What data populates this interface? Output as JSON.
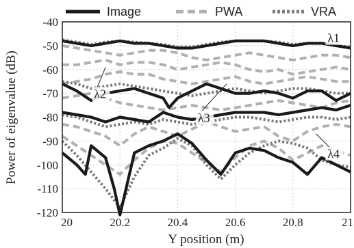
{
  "chart_data": {
    "type": "line",
    "xlabel": "Y position (m)",
    "ylabel": "Power of eigenvalue (dB)",
    "xlim": [
      20,
      21
    ],
    "ylim": [
      -120,
      -40
    ],
    "xticks": [
      "20",
      "20.2",
      "20.4",
      "20.6",
      "20.8",
      "21"
    ],
    "yticks": [
      "-40",
      "-50",
      "-60",
      "-70",
      "-80",
      "-90",
      "-100",
      "-110",
      "-120"
    ],
    "grid": true,
    "legend_position": "top",
    "legend": [
      {
        "name": "Image",
        "style": "solid",
        "color": "#1a1a1a"
      },
      {
        "name": "PWA",
        "style": "dashed",
        "color": "#b0b0b0"
      },
      {
        "name": "VRA",
        "style": "dotted",
        "color": "#7a7a7a"
      }
    ],
    "annotations": [
      {
        "text": "λ1",
        "x": 20.92,
        "y": -48.5
      },
      {
        "text": "λ2",
        "x": 20.11,
        "y": -72
      },
      {
        "text": "λ3",
        "x": 20.47,
        "y": -82
      },
      {
        "text": "λ4",
        "x": 20.92,
        "y": -97
      }
    ],
    "series": [
      {
        "name": "Image",
        "curve": "λ1",
        "style": "solid",
        "x": [
          20,
          20.05,
          20.1,
          20.15,
          20.2,
          20.25,
          20.3,
          20.35,
          20.4,
          20.45,
          20.5,
          20.55,
          20.6,
          20.65,
          20.7,
          20.75,
          20.8,
          20.85,
          20.9,
          20.95,
          21
        ],
        "y": [
          -48,
          -49,
          -50,
          -49,
          -48,
          -49,
          -49,
          -50,
          -51,
          -51,
          -50,
          -49,
          -48,
          -48,
          -48,
          -49,
          -50,
          -49,
          -49,
          -50,
          -51
        ]
      },
      {
        "name": "VRA",
        "curve": "λ1",
        "style": "dotted",
        "x": [
          20,
          20.05,
          20.1,
          20.15,
          20.2,
          20.25,
          20.3,
          20.35,
          20.4,
          20.45,
          20.5,
          20.55,
          20.6,
          20.65,
          20.7,
          20.75,
          20.8,
          20.85,
          20.9,
          20.95,
          21
        ],
        "y": [
          -47.5,
          -48.5,
          -49.5,
          -48.5,
          -48,
          -48.5,
          -49,
          -49.5,
          -50.5,
          -50.5,
          -49.5,
          -48.5,
          -48,
          -48,
          -48,
          -48.5,
          -49.5,
          -49,
          -49,
          -50,
          -50.5
        ]
      },
      {
        "name": "PWA",
        "curve": "λ1",
        "style": "dashed",
        "x": [
          20,
          20.05,
          20.1,
          20.15,
          20.2,
          20.25,
          20.3,
          20.35,
          20.4,
          20.45,
          20.5,
          20.55,
          20.6,
          20.65,
          20.7,
          20.75,
          20.8,
          20.85,
          20.9,
          20.95,
          21
        ],
        "y": [
          -50,
          -51,
          -52,
          -53,
          -54,
          -53,
          -52,
          -52,
          -53,
          -55,
          -56,
          -55,
          -54,
          -53,
          -54,
          -55,
          -56,
          -55,
          -54,
          -54,
          -55
        ]
      },
      {
        "name": "PWA",
        "curve": "λ2",
        "style": "dashed",
        "x": [
          20,
          20.05,
          20.1,
          20.15,
          20.2,
          20.25,
          20.3,
          20.35,
          20.4,
          20.45,
          20.5,
          20.55,
          20.6,
          20.65,
          20.7,
          20.75,
          20.8,
          20.85,
          20.9,
          20.95,
          21
        ],
        "y": [
          -58,
          -58,
          -57,
          -56,
          -58,
          -57,
          -57,
          -58,
          -60,
          -59,
          -58,
          -57,
          -58,
          -60,
          -61,
          -60,
          -62,
          -61,
          -60,
          -59,
          -60
        ]
      },
      {
        "name": "PWA",
        "curve": "λ2",
        "style": "dashed",
        "x": [
          20,
          20.05,
          20.1,
          20.15,
          20.2,
          20.25,
          20.3,
          20.35,
          20.4,
          20.45,
          20.5,
          20.55,
          20.6,
          20.65,
          20.7,
          20.75,
          20.8,
          20.85,
          20.9,
          20.95,
          21
        ],
        "y": [
          -66,
          -65,
          -64,
          -62,
          -61,
          -62,
          -62,
          -64,
          -65,
          -66,
          -65,
          -64,
          -63,
          -65,
          -66,
          -65,
          -64,
          -63,
          -64,
          -65,
          -65
        ]
      },
      {
        "name": "VRA",
        "curve": "λ2",
        "style": "dotted",
        "x": [
          20,
          20.05,
          20.1,
          20.15,
          20.2,
          20.25,
          20.3,
          20.35,
          20.4,
          20.45,
          20.5,
          20.55,
          20.6,
          20.65,
          20.7,
          20.75,
          20.8,
          20.85,
          20.9,
          20.95,
          21
        ],
        "y": [
          -65,
          -66,
          -68,
          -67,
          -66,
          -67,
          -68,
          -69,
          -70,
          -71,
          -70,
          -69,
          -68,
          -69,
          -70,
          -69,
          -68,
          -68,
          -69,
          -70,
          -70
        ]
      },
      {
        "name": "Image",
        "curve": "λ2",
        "style": "solid",
        "x": [
          20,
          20.05,
          20.1,
          20.15,
          20.2,
          20.25,
          20.3,
          20.35,
          20.37,
          20.4,
          20.45,
          20.5,
          20.55,
          20.6,
          20.65,
          20.7,
          20.75,
          20.8,
          20.85,
          20.9,
          20.95,
          21
        ],
        "y": [
          -66,
          -69,
          -73,
          -70,
          -69,
          -68,
          -70,
          -72,
          -76,
          -72,
          -69,
          -66,
          -68,
          -70,
          -70,
          -69,
          -70,
          -72,
          -69,
          -69,
          -73,
          -70
        ]
      },
      {
        "name": "PWA",
        "curve": "λ3",
        "style": "dashed",
        "x": [
          20,
          20.05,
          20.1,
          20.15,
          20.2,
          20.25,
          20.3,
          20.35,
          20.4,
          20.45,
          20.5,
          20.55,
          20.6,
          20.65,
          20.7,
          20.75,
          20.8,
          20.85,
          20.9,
          20.95,
          21
        ],
        "y": [
          -72,
          -71,
          -70,
          -72,
          -74,
          -75,
          -76,
          -77,
          -76,
          -75,
          -76,
          -77,
          -76,
          -75,
          -74,
          -73,
          -74,
          -75,
          -76,
          -74,
          -73
        ]
      },
      {
        "name": "Image",
        "curve": "λ3",
        "style": "solid",
        "x": [
          20,
          20.05,
          20.1,
          20.15,
          20.2,
          20.25,
          20.3,
          20.35,
          20.4,
          20.45,
          20.5,
          20.55,
          20.6,
          20.65,
          20.7,
          20.75,
          20.8,
          20.85,
          20.9,
          20.95,
          21
        ],
        "y": [
          -78,
          -79,
          -80,
          -82,
          -80,
          -81,
          -82,
          -78,
          -80,
          -81,
          -80,
          -79,
          -78,
          -78,
          -78,
          -79,
          -78,
          -77,
          -76,
          -77,
          -75
        ]
      },
      {
        "name": "VRA",
        "curve": "λ3",
        "style": "dotted",
        "x": [
          20,
          20.05,
          20.1,
          20.15,
          20.2,
          20.25,
          20.3,
          20.35,
          20.4,
          20.45,
          20.5,
          20.55,
          20.6,
          20.65,
          20.7,
          20.75,
          20.8,
          20.85,
          20.9,
          20.95,
          21
        ],
        "y": [
          -79,
          -80,
          -82,
          -84,
          -83,
          -82,
          -83,
          -81,
          -82,
          -83,
          -82,
          -81,
          -80,
          -80,
          -81,
          -82,
          -81,
          -80,
          -80,
          -81,
          -80
        ]
      },
      {
        "name": "PWA",
        "curve": "λ3",
        "style": "dashed",
        "x": [
          20,
          20.05,
          20.1,
          20.15,
          20.2,
          20.25,
          20.3,
          20.35,
          20.4,
          20.45,
          20.5,
          20.55,
          20.6,
          20.65,
          20.7,
          20.75,
          20.8,
          20.85,
          20.9,
          20.95,
          21
        ],
        "y": [
          -83,
          -84,
          -86,
          -88,
          -92,
          -87,
          -84,
          -86,
          -88,
          -85,
          -82,
          -84,
          -86,
          -85,
          -84,
          -88,
          -90,
          -86,
          -84,
          -83,
          -84
        ]
      },
      {
        "name": "Image",
        "curve": "λ4",
        "style": "solid",
        "x": [
          20,
          20.05,
          20.08,
          20.1,
          20.15,
          20.18,
          20.2,
          20.25,
          20.3,
          20.35,
          20.4,
          20.45,
          20.5,
          20.55,
          20.6,
          20.65,
          20.7,
          20.75,
          20.8,
          20.85,
          20.9,
          20.95,
          21
        ],
        "y": [
          -95,
          -100,
          -104,
          -92,
          -97,
          -110,
          -122,
          -95,
          -92,
          -90,
          -87,
          -91,
          -98,
          -104,
          -95,
          -93,
          -94,
          -97,
          -99,
          -104,
          -97,
          -100,
          -103
        ]
      },
      {
        "name": "VRA",
        "curve": "λ4",
        "style": "dotted",
        "x": [
          20,
          20.05,
          20.1,
          20.15,
          20.2,
          20.25,
          20.3,
          20.35,
          20.4,
          20.45,
          20.5,
          20.55,
          20.6,
          20.65,
          20.7,
          20.75,
          20.8,
          20.85,
          20.9,
          20.95,
          21
        ],
        "y": [
          -90,
          -96,
          -103,
          -110,
          -118,
          -105,
          -96,
          -93,
          -89,
          -92,
          -100,
          -106,
          -100,
          -95,
          -92,
          -90,
          -91,
          -93,
          -98,
          -100,
          -101
        ]
      },
      {
        "name": "PWA",
        "curve": "λ4",
        "style": "dashed",
        "x": [
          20,
          20.05,
          20.1,
          20.15,
          20.2,
          20.25,
          20.3,
          20.35,
          20.4,
          20.45,
          20.5,
          20.55,
          20.6,
          20.65,
          20.7,
          20.75,
          20.8,
          20.85,
          20.9,
          20.95,
          21
        ],
        "y": [
          -88,
          -92,
          -96,
          -100,
          -104,
          -98,
          -93,
          -90,
          -91,
          -95,
          -99,
          -103,
          -97,
          -92,
          -90,
          -93,
          -98,
          -95,
          -92,
          -94,
          -96
        ]
      }
    ]
  }
}
